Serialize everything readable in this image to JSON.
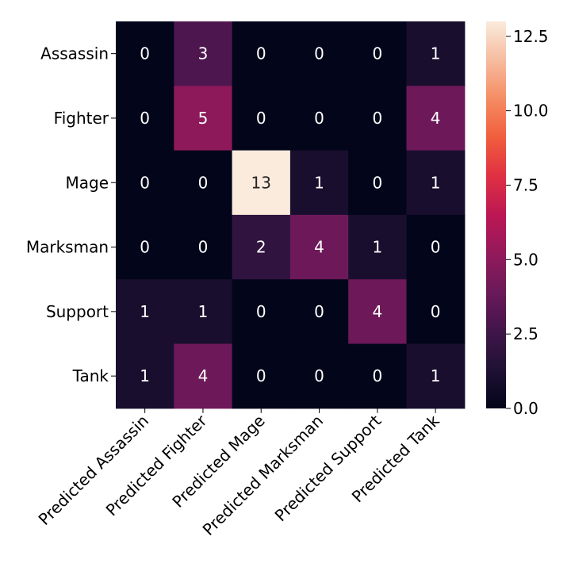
{
  "chart_data": {
    "type": "heatmap",
    "title": "",
    "xlabel": "",
    "ylabel": "",
    "rows": [
      "Assassin",
      "Fighter",
      "Mage",
      "Marksman",
      "Support",
      "Tank"
    ],
    "columns": [
      "Predicted Assassin",
      "Predicted Fighter",
      "Predicted Mage",
      "Predicted Marksman",
      "Predicted Support",
      "Predicted Tank"
    ],
    "values": [
      [
        0,
        3,
        0,
        0,
        0,
        1
      ],
      [
        0,
        5,
        0,
        0,
        0,
        4
      ],
      [
        0,
        0,
        13,
        1,
        0,
        1
      ],
      [
        0,
        0,
        2,
        4,
        1,
        0
      ],
      [
        1,
        1,
        0,
        0,
        4,
        0
      ],
      [
        1,
        4,
        0,
        0,
        0,
        1
      ]
    ],
    "annotations": true,
    "vmin": 0,
    "vmax": 13,
    "colormap": "rocket",
    "colorbar": {
      "ticks": [
        0.0,
        2.5,
        5.0,
        7.5,
        10.0,
        12.5
      ],
      "tick_labels": [
        "0.0",
        "2.5",
        "5.0",
        "7.5",
        "10.0",
        "12.5"
      ]
    },
    "colors": {
      "low": "#03051a",
      "high": "#faebdd",
      "text_light": "#ffffff",
      "text_dark": "#262626"
    }
  }
}
